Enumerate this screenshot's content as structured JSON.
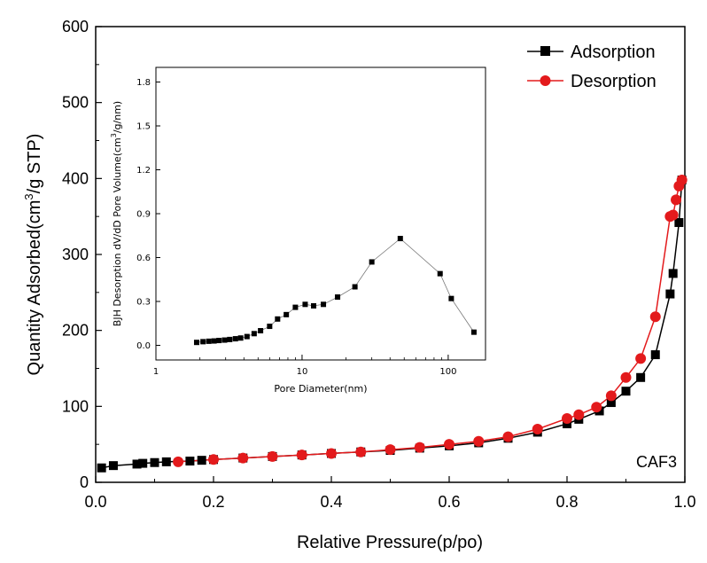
{
  "chart_data": [
    {
      "type": "line",
      "subtype": "isotherm",
      "xlabel": "Relative Pressure(p/po)",
      "ylabel_main": "Quantity Adsorbed(cm",
      "ylabel_sup": "3",
      "ylabel_tail": "/g STP)",
      "xlim": [
        0.0,
        1.0
      ],
      "ylim": [
        0,
        600
      ],
      "xticks": [
        0.0,
        0.2,
        0.4,
        0.6,
        0.8,
        1.0
      ],
      "xtick_labels": [
        "0.0",
        "0.2",
        "0.4",
        "0.6",
        "0.8",
        "1.0"
      ],
      "yticks": [
        0,
        100,
        200,
        300,
        400,
        500,
        600
      ],
      "ytick_labels": [
        "0",
        "100",
        "200",
        "300",
        "400",
        "500",
        "600"
      ],
      "legend_position": "top-right",
      "annotation": "CAF3",
      "series": [
        {
          "name": "Adsorption",
          "color": "#000000",
          "marker": "square",
          "x": [
            0.01,
            0.03,
            0.07,
            0.08,
            0.1,
            0.12,
            0.16,
            0.18,
            0.2,
            0.25,
            0.3,
            0.35,
            0.4,
            0.45,
            0.5,
            0.55,
            0.6,
            0.65,
            0.7,
            0.75,
            0.8,
            0.82,
            0.855,
            0.875,
            0.9,
            0.925,
            0.95,
            0.975,
            0.98,
            0.99,
            0.995
          ],
          "values": [
            19,
            22,
            24,
            25,
            26,
            27,
            28,
            29,
            30,
            32,
            34,
            36,
            38,
            40,
            42,
            45,
            48,
            52,
            58,
            66,
            77,
            83,
            94,
            105,
            120,
            138,
            168,
            248,
            275,
            342,
            398
          ]
        },
        {
          "name": "Desorption",
          "color": "#e31a1c",
          "marker": "circle",
          "x": [
            0.995,
            0.99,
            0.985,
            0.98,
            0.975,
            0.95,
            0.925,
            0.9,
            0.875,
            0.85,
            0.82,
            0.8,
            0.75,
            0.7,
            0.65,
            0.6,
            0.55,
            0.5,
            0.45,
            0.4,
            0.35,
            0.3,
            0.25,
            0.2,
            0.14
          ],
          "values": [
            398,
            390,
            372,
            352,
            350,
            218,
            163,
            138,
            114,
            99,
            89,
            84,
            70,
            60,
            54,
            50,
            46,
            43,
            40,
            38,
            36,
            34,
            32,
            30,
            27
          ]
        }
      ]
    },
    {
      "type": "line",
      "role": "inset",
      "xscale": "log",
      "xlabel": "Pore Diameter(nm)",
      "ylabel_main": "BJH Desorption dV/dD Pore Volume(cm",
      "ylabel_sup": "3",
      "ylabel_tail": "/g/nm)",
      "xlim": [
        1,
        180
      ],
      "ylim": [
        -0.1,
        1.9
      ],
      "xticks": [
        1,
        10,
        100
      ],
      "xtick_labels": [
        "1",
        "10",
        "100"
      ],
      "yticks": [
        0.0,
        0.3,
        0.6,
        0.9,
        1.2,
        1.5,
        1.8
      ],
      "ytick_labels": [
        "0.0",
        "0.3",
        "0.6",
        "0.9",
        "1.2",
        "1.5",
        "1.8"
      ],
      "series": [
        {
          "color": "#000000",
          "marker": "square",
          "x": [
            1.9,
            2.1,
            2.3,
            2.5,
            2.7,
            2.95,
            3.2,
            3.5,
            3.8,
            4.2,
            4.7,
            5.2,
            6.0,
            6.8,
            7.8,
            9.0,
            10.5,
            12.0,
            14.0,
            17.5,
            23.0,
            30.0,
            47.0,
            88.0,
            105.0,
            150.0
          ],
          "values": [
            0.02,
            0.025,
            0.028,
            0.03,
            0.033,
            0.036,
            0.04,
            0.045,
            0.05,
            0.06,
            0.08,
            0.1,
            0.13,
            0.18,
            0.21,
            0.26,
            0.28,
            0.27,
            0.28,
            0.33,
            0.4,
            0.57,
            0.73,
            0.49,
            0.32,
            0.09
          ]
        }
      ]
    }
  ]
}
